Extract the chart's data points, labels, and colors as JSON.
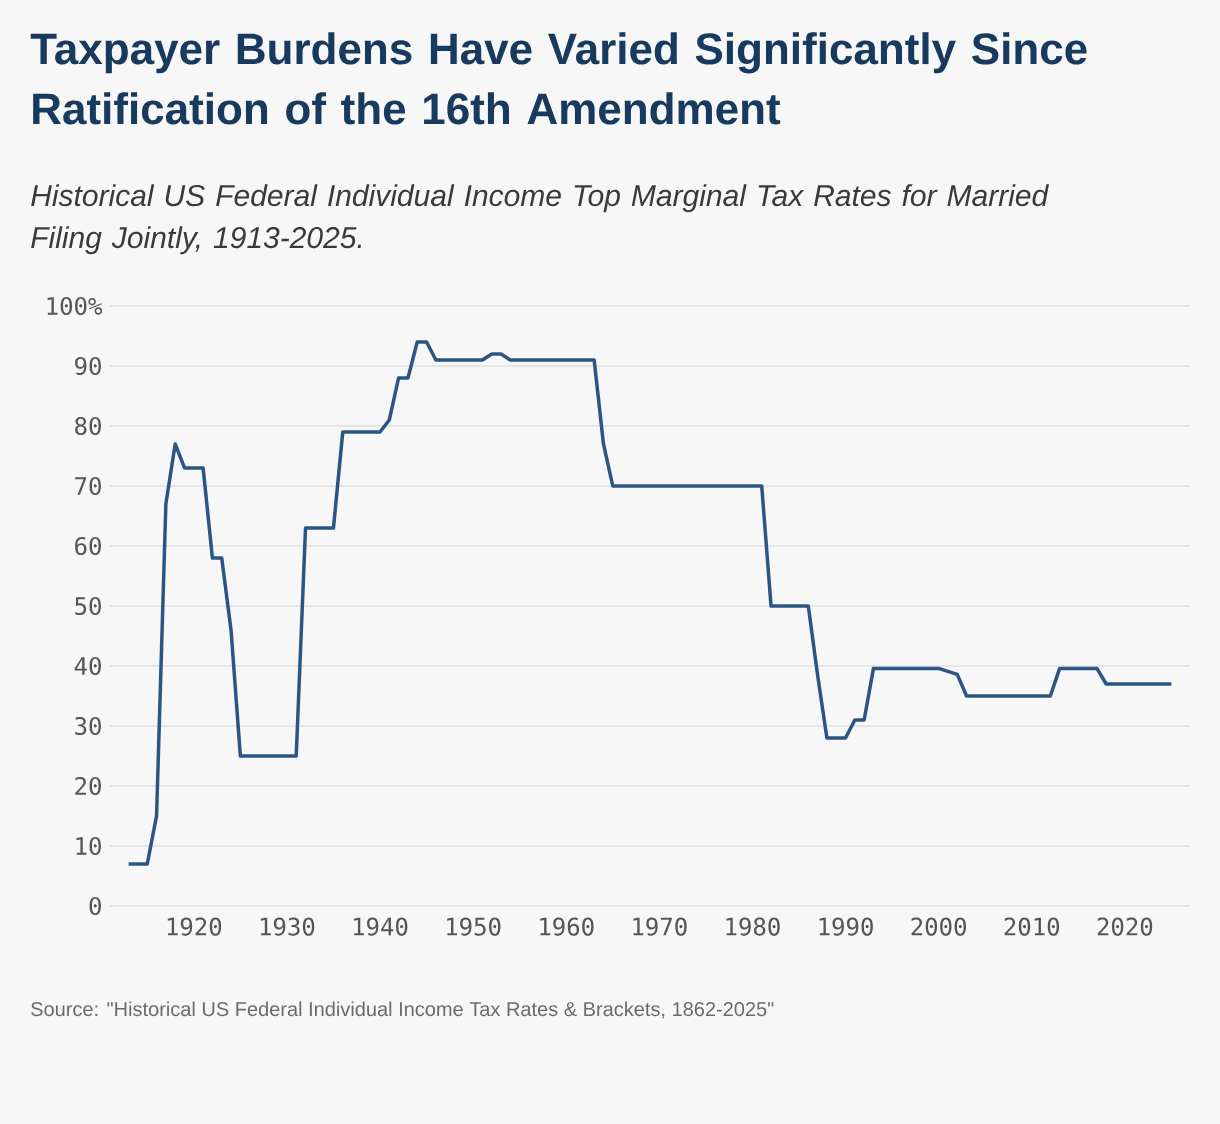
{
  "chart_data": {
    "type": "line",
    "title": "Taxpayer Burdens Have Varied Significantly Since Ratification of the 16th Amendment",
    "subtitle": "Historical US Federal Individual Income Top Marginal Tax Rates for Married Filing Jointly, 1913-2025.",
    "annotations": [
      "Source: \"Historical US Federal Individual Income Tax Rates & Brackets, 1862-2025\""
    ],
    "x": [
      1913,
      1914,
      1915,
      1916,
      1917,
      1918,
      1919,
      1920,
      1921,
      1922,
      1923,
      1924,
      1925,
      1926,
      1927,
      1928,
      1929,
      1930,
      1931,
      1932,
      1933,
      1934,
      1935,
      1936,
      1937,
      1938,
      1939,
      1940,
      1941,
      1942,
      1943,
      1944,
      1945,
      1946,
      1947,
      1948,
      1949,
      1950,
      1951,
      1952,
      1953,
      1954,
      1955,
      1956,
      1957,
      1958,
      1959,
      1960,
      1961,
      1962,
      1963,
      1964,
      1965,
      1966,
      1967,
      1968,
      1969,
      1970,
      1971,
      1972,
      1973,
      1974,
      1975,
      1976,
      1977,
      1978,
      1979,
      1980,
      1981,
      1982,
      1983,
      1984,
      1985,
      1986,
      1987,
      1988,
      1989,
      1990,
      1991,
      1992,
      1993,
      1994,
      1995,
      1996,
      1997,
      1998,
      1999,
      2000,
      2001,
      2002,
      2003,
      2004,
      2005,
      2006,
      2007,
      2008,
      2009,
      2010,
      2011,
      2012,
      2013,
      2014,
      2015,
      2016,
      2017,
      2018,
      2019,
      2020,
      2021,
      2022,
      2023,
      2024,
      2025
    ],
    "values": [
      7,
      7,
      7,
      15,
      67,
      77,
      73,
      73,
      73,
      58,
      58,
      46,
      25,
      25,
      25,
      25,
      25,
      25,
      25,
      63,
      63,
      63,
      63,
      79,
      79,
      79,
      79,
      79,
      81,
      88,
      88,
      94,
      94,
      91,
      91,
      91,
      91,
      91,
      91,
      92,
      92,
      91,
      91,
      91,
      91,
      91,
      91,
      91,
      91,
      91,
      91,
      77,
      70,
      70,
      70,
      70,
      70,
      70,
      70,
      70,
      70,
      70,
      70,
      70,
      70,
      70,
      70,
      70,
      70,
      50,
      50,
      50,
      50,
      50,
      38.5,
      28,
      28,
      28,
      31,
      31,
      39.6,
      39.6,
      39.6,
      39.6,
      39.6,
      39.6,
      39.6,
      39.6,
      39.1,
      38.6,
      35,
      35,
      35,
      35,
      35,
      35,
      35,
      35,
      35,
      35,
      39.6,
      39.6,
      39.6,
      39.6,
      39.6,
      37,
      37,
      37,
      37,
      37,
      37,
      37,
      37
    ],
    "color": "#2b5582",
    "line_style": "solid",
    "marker": "none",
    "grid": "y",
    "xlim": [
      1911,
      2027
    ],
    "xticks": [
      1920,
      1930,
      1940,
      1950,
      1960,
      1970,
      1980,
      1990,
      2000,
      2010,
      2020
    ],
    "ylim": [
      0,
      100
    ],
    "yticks": [
      0,
      10,
      20,
      30,
      40,
      50,
      60,
      70,
      80,
      90,
      {
        "value": 100,
        "label": "100%"
      }
    ]
  }
}
